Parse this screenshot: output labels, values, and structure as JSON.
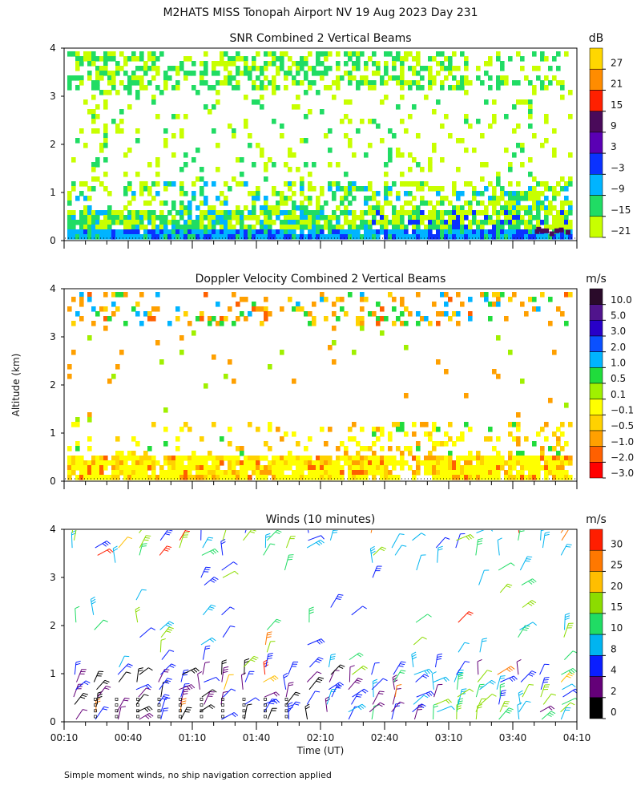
{
  "figure": {
    "title": "M2HATS MISS Tonopah Airport NV  19 Aug 2023 Day 231",
    "ylabel": "Altitude (km)",
    "xlabel": "Time (UT)",
    "footnote": "Simple moment winds, no ship navigation correction applied"
  },
  "chart_data": [
    {
      "type": "heatmap",
      "title": "SNR Combined 2 Vertical Beams",
      "unit": "dB",
      "ylim": [
        0,
        4
      ],
      "yticks": [
        "0",
        "1",
        "2",
        "3",
        "4"
      ],
      "xlim": [
        "00:10",
        "04:10"
      ],
      "colorbar": {
        "labels": [
          "27",
          "21",
          "15",
          "9",
          "3",
          "−3",
          "−9",
          "−15",
          "−21"
        ],
        "colors": [
          "#ffd700",
          "#ff8c00",
          "#ff2000",
          "#4a0a5a",
          "#5a00b4",
          "#0a32ff",
          "#00b4ff",
          "#20dc64",
          "#c8ff00"
        ]
      }
    },
    {
      "type": "heatmap",
      "title": "Doppler Velocity Combined 2 Vertical Beams",
      "unit": "m/s",
      "ylim": [
        0,
        4
      ],
      "yticks": [
        "0",
        "1",
        "2",
        "3",
        "4"
      ],
      "xlim": [
        "00:10",
        "04:10"
      ],
      "colorbar": {
        "labels": [
          "10.0",
          "5.0",
          "3.0",
          "2.0",
          "1.0",
          "0.5",
          "0.1",
          "−0.1",
          "−0.5",
          "−1.0",
          "−2.0",
          "−3.0"
        ],
        "colors": [
          "#2a0a2a",
          "#50148c",
          "#2800c8",
          "#0a50ff",
          "#00b4ff",
          "#20dc3c",
          "#a0f000",
          "#ffff00",
          "#ffd200",
          "#ffa000",
          "#ff6000",
          "#ff0000"
        ]
      }
    },
    {
      "type": "scatter",
      "title": "Winds (10 minutes)",
      "unit": "m/s",
      "ylim": [
        0,
        4
      ],
      "yticks": [
        "0",
        "1",
        "2",
        "3",
        "4"
      ],
      "xticks": [
        "00:10",
        "00:40",
        "01:10",
        "01:40",
        "02:10",
        "02:40",
        "03:10",
        "03:40",
        "04:10"
      ],
      "colorbar": {
        "labels": [
          "30",
          "25",
          "20",
          "15",
          "10",
          "8",
          "4",
          "2",
          "0"
        ],
        "colors": [
          "#ff1e00",
          "#ff7800",
          "#ffbe00",
          "#8cdc00",
          "#20dc64",
          "#00b4f0",
          "#0a1eff",
          "#640078",
          "#000000"
        ]
      }
    }
  ]
}
